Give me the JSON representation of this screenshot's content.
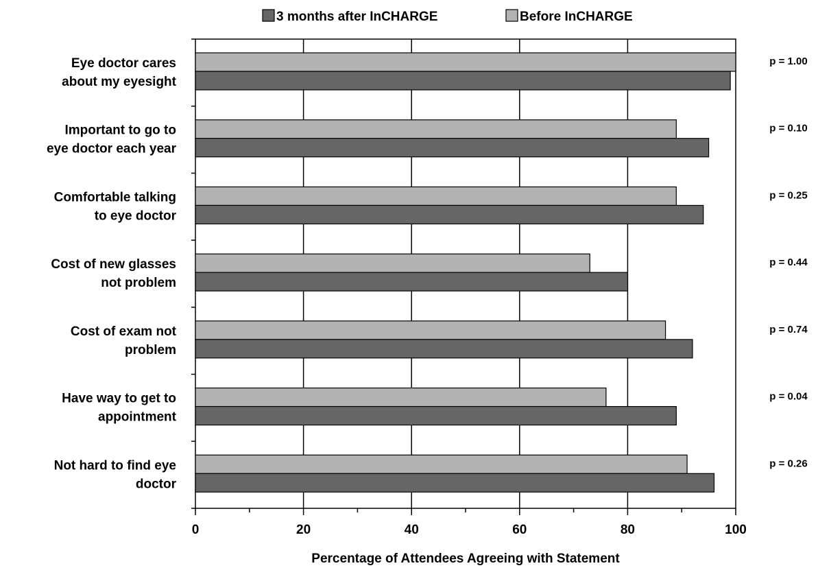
{
  "chart_data": {
    "type": "bar",
    "orientation": "horizontal",
    "title": "",
    "xlabel": "Percentage of Attendees Agreeing with Statement",
    "ylabel": "",
    "xlim": [
      0,
      100
    ],
    "x_ticks": [
      0,
      20,
      40,
      60,
      80,
      100
    ],
    "grid": "vertical",
    "legend_position": "top",
    "categories": [
      [
        "Eye doctor cares",
        "about my eyesight"
      ],
      [
        "Important to go to",
        "eye doctor each year"
      ],
      [
        "Comfortable talking",
        "to eye doctor"
      ],
      [
        "Cost of new glasses",
        "not problem"
      ],
      [
        "Cost of exam not",
        "problem"
      ],
      [
        "Have way to get to",
        "appointment"
      ],
      [
        "Not hard to find eye",
        "doctor"
      ]
    ],
    "series": [
      {
        "name": "Before InCHARGE",
        "color": "#b3b3b3",
        "values": [
          100,
          89,
          89,
          73,
          87,
          76,
          91
        ]
      },
      {
        "name": "3 months after InCHARGE",
        "color": "#666666",
        "values": [
          99,
          95,
          94,
          80,
          92,
          89,
          96
        ]
      }
    ],
    "legend_order": [
      "3 months after InCHARGE",
      "Before InCHARGE"
    ],
    "annotations": [
      "p = 1.00",
      "p = 0.10",
      "p = 0.25",
      "p = 0.44",
      "p = 0.74",
      "p = 0.04",
      "p = 0.26"
    ]
  }
}
